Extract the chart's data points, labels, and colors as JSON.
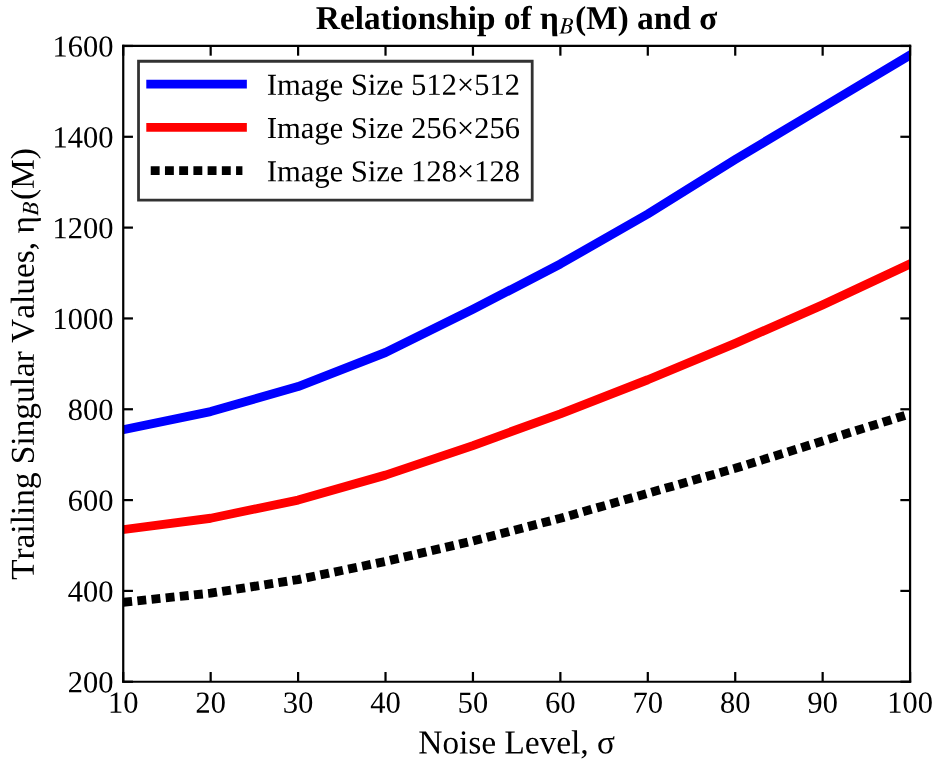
{
  "chart_data": {
    "type": "line",
    "title": "Relationship of η$_{B}$(M) and σ",
    "xlabel": "Noise Level, σ",
    "ylabel": "Trailing Singular Values, η$_{B}$(M)",
    "x": [
      10,
      20,
      30,
      40,
      50,
      60,
      70,
      80,
      90,
      100
    ],
    "series": [
      {
        "name": "Image Size 512×512",
        "color": "#0000ff",
        "values": [
          755,
          795,
          850,
          925,
          1020,
          1120,
          1230,
          1350,
          1465,
          1580
        ]
      },
      {
        "name": "Image Size 256×256",
        "color": "#ff0000",
        "values": [
          535,
          560,
          600,
          655,
          720,
          790,
          865,
          945,
          1030,
          1120
        ]
      },
      {
        "name": "Image Size 128×128",
        "color": "#000000",
        "line_style": "dotted",
        "values": [
          375,
          395,
          425,
          465,
          510,
          560,
          615,
          670,
          730,
          790
        ]
      }
    ],
    "xlim": [
      10,
      100
    ],
    "xticks": [
      10,
      20,
      30,
      40,
      50,
      60,
      70,
      80,
      90,
      100
    ],
    "ylim": [
      200,
      1600
    ],
    "yticks": [
      200,
      400,
      600,
      800,
      1000,
      1200,
      1400,
      1600
    ],
    "grid": false,
    "legend": "top left",
    "marker": "none"
  }
}
